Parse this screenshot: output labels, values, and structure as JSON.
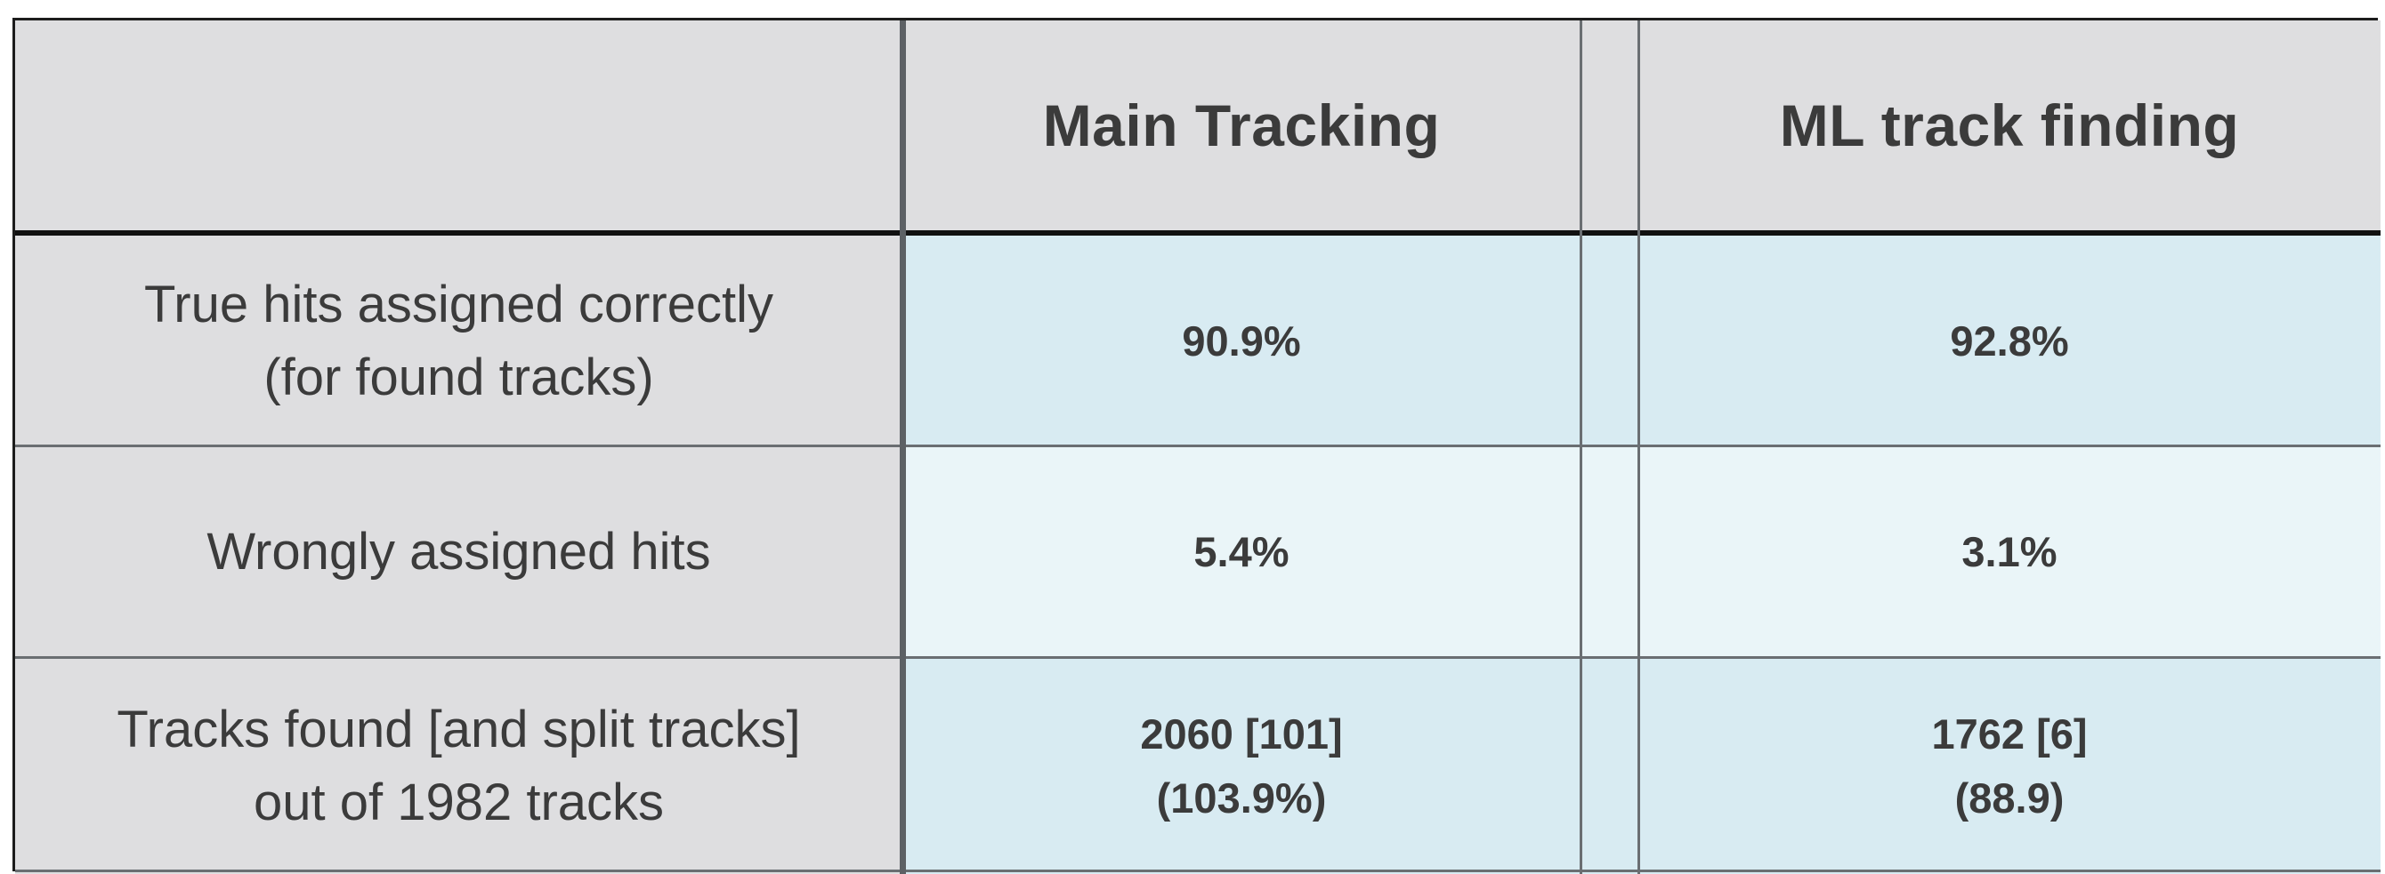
{
  "header": {
    "corner": "",
    "col1": "Main Tracking",
    "col2": "ML track finding"
  },
  "rows": [
    {
      "label_line1": "True hits assigned correctly",
      "label_line2": "(for found tracks)",
      "main_line1": "90.9%",
      "main_line2": "",
      "ml_line1": "92.8%",
      "ml_line2": ""
    },
    {
      "label_line1": "Wrongly assigned hits",
      "label_line2": "",
      "main_line1": "5.4%",
      "main_line2": "",
      "ml_line1": "3.1%",
      "ml_line2": ""
    },
    {
      "label_line1": "Tracks found [and split tracks]",
      "label_line2": "out of 1982 tracks",
      "main_line1": "2060 [101]",
      "main_line2": "(103.9%)",
      "ml_line1": "1762 [6]",
      "ml_line2": "(88.9)"
    }
  ]
}
